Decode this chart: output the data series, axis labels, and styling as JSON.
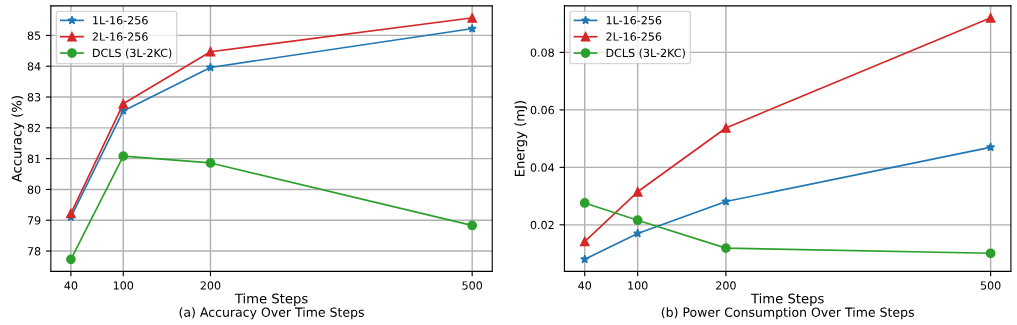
{
  "chart_data": [
    {
      "type": "line",
      "xlabel": "Time Steps",
      "ylabel": "Accuracy (%)",
      "annotations": [
        "(a) Accuracy Over Time Steps"
      ],
      "x": [
        40,
        100,
        200,
        500
      ],
      "series": [
        {
          "name": "1L-16-256",
          "color": "#1f77b4",
          "marker": "star",
          "values": [
            79.1,
            82.55,
            83.96,
            85.22
          ]
        },
        {
          "name": "2L-16-256",
          "color": "#d62728",
          "marker": "triangle",
          "values": [
            79.22,
            82.78,
            84.47,
            85.57
          ]
        },
        {
          "name": "DCLS (3L-2KC)",
          "color": "#2ca02c",
          "marker": "circle",
          "values": [
            77.73,
            81.08,
            80.86,
            78.83
          ]
        }
      ],
      "xlim": [
        17,
        523
      ],
      "xticks": [
        40,
        100,
        200,
        500
      ],
      "ylim": [
        77.34,
        85.96
      ],
      "yticks": [
        78,
        79,
        80,
        81,
        82,
        83,
        84,
        85
      ],
      "grid": true,
      "legend": "top left"
    },
    {
      "type": "line",
      "xlabel": "Time Steps",
      "ylabel": "Energy (mJ)",
      "annotations": [
        "(b) Power Consumption Over Time Steps"
      ],
      "x": [
        40,
        100,
        200,
        500
      ],
      "series": [
        {
          "name": "1L-16-256",
          "color": "#1f77b4",
          "marker": "star",
          "values": [
            0.008,
            0.017,
            0.0281,
            0.047
          ]
        },
        {
          "name": "2L-16-256",
          "color": "#d62728",
          "marker": "triangle",
          "values": [
            0.0142,
            0.0315,
            0.0537,
            0.092
          ]
        },
        {
          "name": "DCLS (3L-2KC)",
          "color": "#2ca02c",
          "marker": "circle",
          "values": [
            0.0276,
            0.0216,
            0.0119,
            0.0101
          ]
        }
      ],
      "xlim": [
        17,
        523
      ],
      "xticks": [
        40,
        100,
        200,
        500
      ],
      "ylim": [
        0.0038,
        0.0962
      ],
      "yticks": [
        {
          "value": 0.02,
          "label": "0.02"
        },
        {
          "value": 0.04,
          "label": "0.04"
        },
        {
          "value": 0.06,
          "label": "0.06"
        },
        {
          "value": 0.08,
          "label": "0.08"
        }
      ],
      "grid": true,
      "legend": "top left"
    }
  ]
}
